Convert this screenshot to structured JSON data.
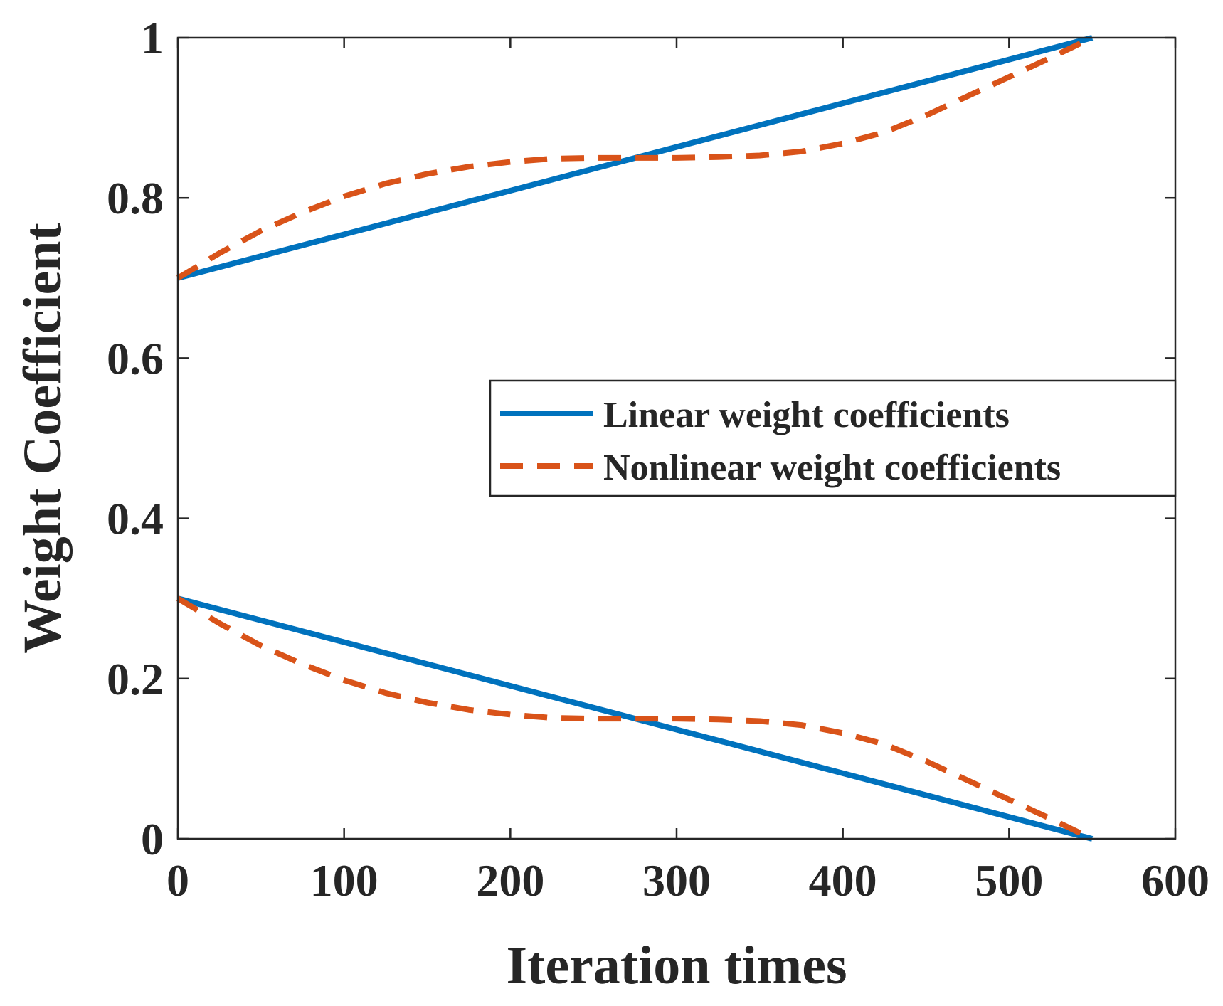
{
  "chart_data": {
    "type": "line",
    "xlabel": "Iteration times",
    "ylabel": "Weight Coefficient",
    "xlim": [
      0,
      600
    ],
    "ylim": [
      0,
      1
    ],
    "xticks": [
      0,
      100,
      200,
      300,
      400,
      500,
      600
    ],
    "yticks": [
      0,
      0.2,
      0.4,
      0.6,
      0.8,
      1
    ],
    "xtick_labels": [
      "0",
      "100",
      "200",
      "300",
      "400",
      "500",
      "600"
    ],
    "ytick_labels": [
      "0",
      "0.2",
      "0.4",
      "0.6",
      "0.8",
      "1"
    ],
    "grid": false,
    "legend_position": "right",
    "colors": {
      "linear": "#0072BD",
      "nonlinear": "#D95319"
    },
    "legend": [
      {
        "label": "Linear weight coefficients",
        "style": "solid",
        "color": "#0072BD"
      },
      {
        "label": "Nonlinear weight coefficients",
        "style": "dashed",
        "color": "#D95319"
      }
    ],
    "series": [
      {
        "legend_index": 0,
        "style": "solid",
        "color": "#0072BD",
        "x": [
          0,
          550
        ],
        "y": [
          0.7,
          1.0
        ]
      },
      {
        "legend_index": 0,
        "style": "solid",
        "color": "#0072BD",
        "x": [
          0,
          550
        ],
        "y": [
          0.3,
          0.0
        ]
      },
      {
        "legend_index": 1,
        "style": "dashed",
        "color": "#D95319",
        "x": [
          0,
          25,
          50,
          75,
          100,
          125,
          150,
          175,
          200,
          225,
          250,
          275,
          300,
          325,
          350,
          375,
          400,
          425,
          450,
          475,
          500,
          525,
          550
        ],
        "y": [
          0.7,
          0.731,
          0.759,
          0.782,
          0.802,
          0.818,
          0.83,
          0.839,
          0.845,
          0.849,
          0.85,
          0.85,
          0.85,
          0.851,
          0.853,
          0.858,
          0.868,
          0.882,
          0.903,
          0.927,
          0.951,
          0.975,
          1.0
        ]
      },
      {
        "legend_index": 1,
        "style": "dashed",
        "color": "#D95319",
        "x": [
          0,
          25,
          50,
          75,
          100,
          125,
          150,
          175,
          200,
          225,
          250,
          275,
          300,
          325,
          350,
          375,
          400,
          425,
          450,
          475,
          500,
          525,
          550
        ],
        "y": [
          0.3,
          0.269,
          0.241,
          0.218,
          0.198,
          0.182,
          0.17,
          0.161,
          0.155,
          0.151,
          0.15,
          0.15,
          0.15,
          0.149,
          0.147,
          0.142,
          0.132,
          0.118,
          0.097,
          0.073,
          0.049,
          0.025,
          0.0
        ]
      }
    ]
  }
}
